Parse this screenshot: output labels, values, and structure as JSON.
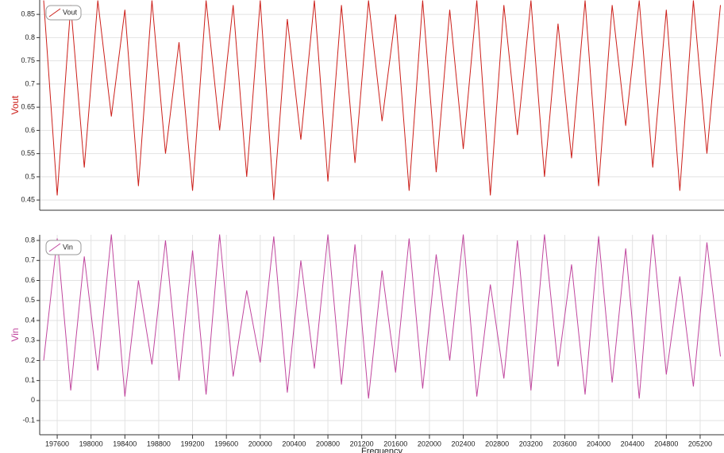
{
  "chart_data": [
    {
      "type": "line",
      "ylabel": "Vout",
      "ylim": [
        0.428,
        0.881
      ],
      "yticks": [
        0.45,
        0.5,
        0.55,
        0.6,
        0.65,
        0.7,
        0.75,
        0.8,
        0.85
      ],
      "xlim": [
        197393,
        205482
      ],
      "grid": true,
      "x": [
        197440,
        197600,
        197760,
        197920,
        198080,
        198240,
        198400,
        198560,
        198720,
        198880,
        199040,
        199200,
        199360,
        199520,
        199680,
        199840,
        200000,
        200160,
        200320,
        200480,
        200640,
        200800,
        200960,
        201120,
        201280,
        201440,
        201600,
        201760,
        201920,
        202080,
        202240,
        202400,
        202560,
        202720,
        202880,
        203040,
        203200,
        203360,
        203520,
        203680,
        203840,
        204000,
        204160,
        204320,
        204480,
        204640,
        204800,
        204960,
        205120,
        205280,
        205440
      ],
      "series": [
        {
          "name": "Vout",
          "color": "#cc1f1a",
          "values": [
            0.88,
            0.46,
            0.87,
            0.52,
            0.88,
            0.63,
            0.86,
            0.48,
            0.88,
            0.55,
            0.79,
            0.47,
            0.88,
            0.6,
            0.87,
            0.5,
            0.88,
            0.45,
            0.84,
            0.58,
            0.88,
            0.49,
            0.87,
            0.53,
            0.88,
            0.62,
            0.85,
            0.47,
            0.88,
            0.51,
            0.86,
            0.56,
            0.88,
            0.46,
            0.87,
            0.59,
            0.88,
            0.5,
            0.83,
            0.54,
            0.88,
            0.48,
            0.87,
            0.61,
            0.88,
            0.52,
            0.86,
            0.47,
            0.88,
            0.55,
            0.87
          ]
        }
      ]
    },
    {
      "type": "line",
      "ylabel": "Vin",
      "xlabel": "Frequency",
      "ylim": [
        -0.171,
        0.828
      ],
      "yticks": [
        -0.1,
        0,
        0.1,
        0.2,
        0.3,
        0.4,
        0.5,
        0.6,
        0.7,
        0.8
      ],
      "xlim": [
        197393,
        205482
      ],
      "grid": true,
      "xticks": [
        197600,
        198000,
        198400,
        198800,
        199200,
        199600,
        200000,
        200400,
        200800,
        201200,
        201600,
        202000,
        202400,
        202800,
        203200,
        203600,
        204000,
        204400,
        204800,
        205200
      ],
      "x": [
        197440,
        197600,
        197760,
        197920,
        198080,
        198240,
        198400,
        198560,
        198720,
        198880,
        199040,
        199200,
        199360,
        199520,
        199680,
        199840,
        200000,
        200160,
        200320,
        200480,
        200640,
        200800,
        200960,
        201120,
        201280,
        201440,
        201600,
        201760,
        201920,
        202080,
        202240,
        202400,
        202560,
        202720,
        202880,
        203040,
        203200,
        203360,
        203520,
        203680,
        203840,
        204000,
        204160,
        204320,
        204480,
        204640,
        204800,
        204960,
        205120,
        205280,
        205440
      ],
      "series": [
        {
          "name": "Vin",
          "color": "#c0469e",
          "values": [
            0.2,
            0.81,
            0.05,
            0.72,
            0.15,
            0.83,
            0.02,
            0.6,
            0.18,
            0.8,
            0.1,
            0.75,
            0.03,
            0.83,
            0.12,
            0.55,
            0.19,
            0.82,
            0.04,
            0.7,
            0.16,
            0.83,
            0.08,
            0.78,
            0.01,
            0.65,
            0.14,
            0.81,
            0.06,
            0.73,
            0.2,
            0.83,
            0.02,
            0.58,
            0.11,
            0.8,
            0.05,
            0.83,
            0.17,
            0.68,
            0.03,
            0.82,
            0.09,
            0.76,
            0.01,
            0.83,
            0.13,
            0.62,
            0.07,
            0.79,
            0.22
          ]
        }
      ]
    }
  ]
}
